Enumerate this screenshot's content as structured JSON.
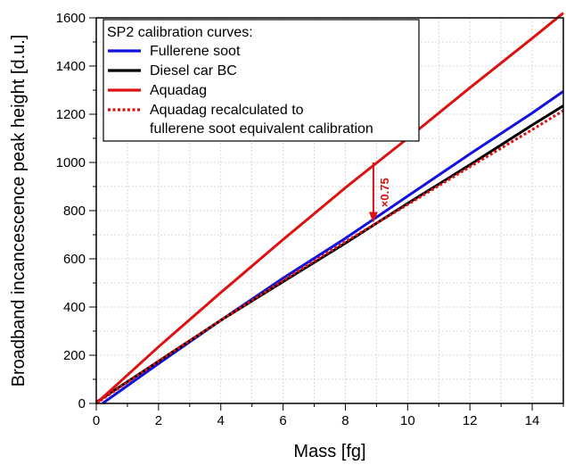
{
  "chart_data": {
    "type": "line",
    "title": "",
    "xlabel": "Mass [fg]",
    "ylabel": "Broadband incancescence peak height [d.u.]",
    "xlim": [
      0,
      15
    ],
    "ylim": [
      0,
      1600
    ],
    "xticks": [
      0,
      2,
      4,
      6,
      8,
      10,
      12,
      14
    ],
    "yticks": [
      0,
      200,
      400,
      600,
      800,
      1000,
      1200,
      1400,
      1600
    ],
    "grid": true,
    "legend": {
      "title": "SP2 calibration curves:",
      "placement": "top-left"
    },
    "series": [
      {
        "name": "Fullerene soot",
        "color": "#1111dd",
        "style": "solid",
        "x": [
          0.2,
          2,
          4,
          6,
          8,
          10,
          12,
          14,
          15
        ],
        "y": [
          0,
          165,
          345,
          520,
          685,
          860,
          1035,
          1205,
          1295
        ]
      },
      {
        "name": "Diesel car BC",
        "color": "#000000",
        "style": "solid",
        "x": [
          0,
          2,
          4,
          6,
          8,
          10,
          12,
          14,
          15
        ],
        "y": [
          5,
          175,
          345,
          505,
          665,
          830,
          990,
          1155,
          1235
        ]
      },
      {
        "name": "Aquadag",
        "color": "#dd1111",
        "style": "solid",
        "x": [
          0,
          2,
          4,
          6,
          8,
          10,
          12,
          14,
          15
        ],
        "y": [
          0,
          235,
          460,
          680,
          895,
          1100,
          1310,
          1515,
          1620
        ]
      },
      {
        "name": "Aquadag recalculated to fullerene soot equivalent calibration",
        "legend_lines": [
          "Aquadag recalculated to",
          "fullerene soot equivalent calibration"
        ],
        "color": "#dd1111",
        "style": "dotted",
        "x": [
          0,
          2,
          4,
          6,
          8,
          10,
          12,
          14,
          15
        ],
        "y": [
          0,
          176,
          345,
          510,
          671,
          825,
          982,
          1136,
          1215
        ]
      }
    ],
    "annotations": [
      {
        "text": "×0.75",
        "color": "#dd1111",
        "arrow_x": 8.9,
        "arrow_from_y": 1000,
        "arrow_to_y": 750
      }
    ]
  }
}
